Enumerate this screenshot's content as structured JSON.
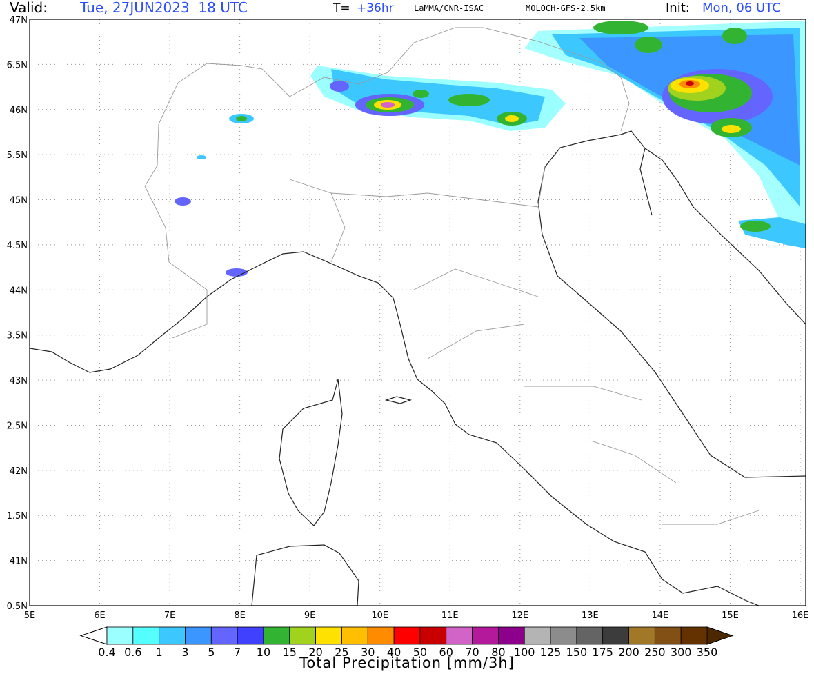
{
  "header": {
    "valid_label": "Valid:",
    "valid_time": "Tue, 27JUN2023  18 UTC",
    "forecast_label": "T=",
    "forecast_hour": "+36hr",
    "source": "LaMMA/CNR-ISAC",
    "model": "MOLOCH-GFS-2.5km",
    "init_label": "Init:",
    "init_time": "Mon, 06 UTC"
  },
  "map": {
    "lat_labels": [
      "47N",
      "6.5N",
      "46N",
      "5.5N",
      "45N",
      "4.5N",
      "44N",
      "3.5N",
      "43N",
      "2.5N",
      "42N",
      "1.5N",
      "41N",
      "0.5N"
    ],
    "lon_labels": [
      "5E",
      "6E",
      "7E",
      "8E",
      "9E",
      "10E",
      "11E",
      "12E",
      "13E",
      "14E",
      "15E",
      "16E"
    ]
  },
  "colorbar": {
    "title": "Total Precipitation [mm/3h]",
    "levels": [
      "0.4",
      "0.6",
      "1",
      "3",
      "5",
      "7",
      "10",
      "15",
      "20",
      "25",
      "30",
      "40",
      "50",
      "60",
      "70",
      "80",
      "100",
      "125",
      "150",
      "175",
      "200",
      "250",
      "300",
      "350"
    ],
    "below_color": "#ffffff",
    "above_color": "#4b2800",
    "colors": [
      "#9bffff",
      "#55ffff",
      "#3cc8ff",
      "#3c96ff",
      "#6464ff",
      "#4040ff",
      "#32b432",
      "#a0d21e",
      "#ffe100",
      "#ffbe00",
      "#ff8c00",
      "#ff0000",
      "#c80000",
      "#d264c8",
      "#b4199b",
      "#8c008c",
      "#b4b4b4",
      "#8c8c8c",
      "#646464",
      "#3c3c3c",
      "#a07828",
      "#825014",
      "#643200"
    ]
  }
}
